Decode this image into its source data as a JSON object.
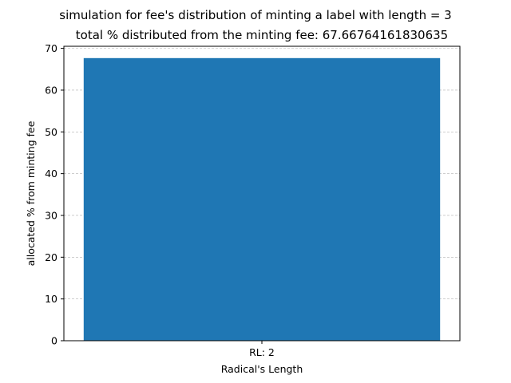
{
  "chart_data": {
    "type": "bar",
    "title": [
      "simulation for fee's distribution of minting a label with length = 3",
      "total % distributed from the minting fee: 67.66764161830635"
    ],
    "xlabel": "Radical's Length",
    "ylabel": "allocated % from minting fee",
    "categories": [
      "RL: 2"
    ],
    "values": [
      67.67
    ],
    "ylim": [
      0,
      70.5
    ],
    "yticks": [
      0,
      10,
      20,
      30,
      40,
      50,
      60,
      70
    ],
    "grid": "y-dashed",
    "bar_color": "#1f77b4"
  }
}
